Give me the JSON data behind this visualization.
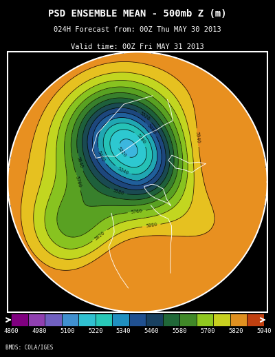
{
  "title_line1": "PSD ENSEMBLE MEAN - 500mb Z (m)",
  "title_line2": "024H Forecast from: 00Z Thu MAY 30 2013",
  "title_line3": "Valid time: 00Z Fri MAY 31 2013",
  "credit": "BMDS: COLA/IGES",
  "colorbar_levels": [
    4860,
    4980,
    5100,
    5220,
    5340,
    5460,
    5580,
    5700,
    5820,
    5940
  ],
  "colorbar_colors": [
    "#7B0080",
    "#9B30C0",
    "#A060D0",
    "#5090D0",
    "#40C0E0",
    "#30D0D0",
    "#2090C0",
    "#205090",
    "#208040",
    "#40B020",
    "#80D020",
    "#C0E030",
    "#E0C020",
    "#E09020",
    "#C05020",
    "#A02010"
  ],
  "bg_color": "#000000",
  "map_bg": "#000000",
  "fig_width": 4.0,
  "fig_height": 5.18
}
